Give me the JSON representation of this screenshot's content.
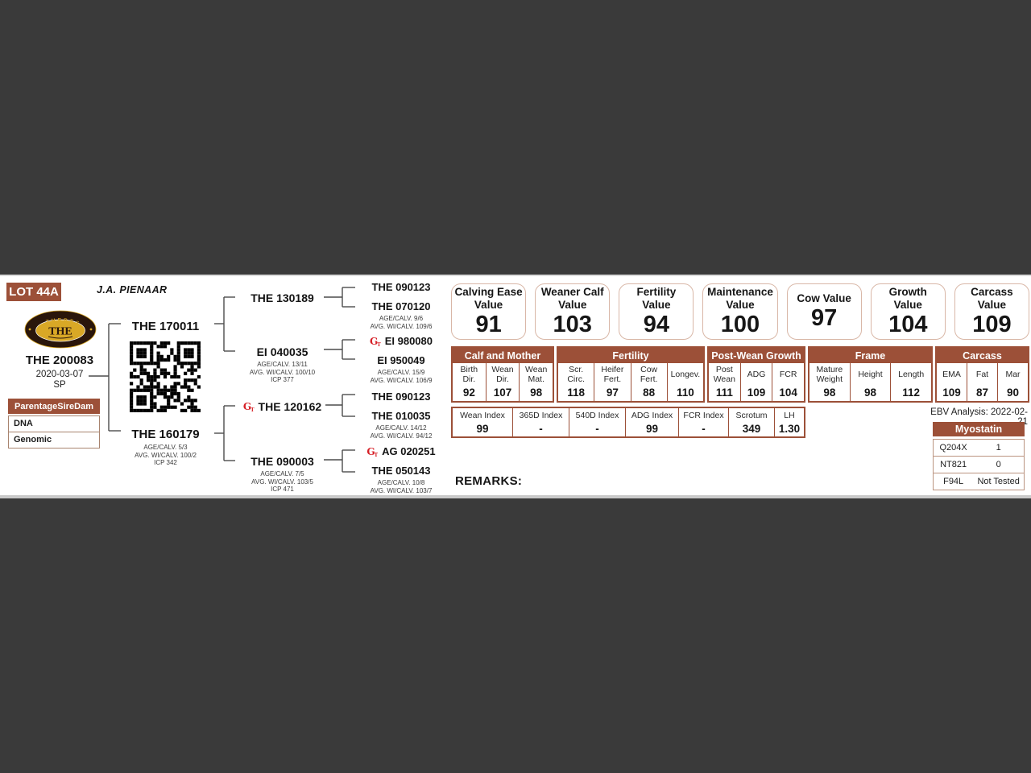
{
  "header": {
    "lot": "LOT 44A",
    "breeder": "J.A. PIENAAR"
  },
  "animal": {
    "id": "THE 200083",
    "birth_date": "2020-03-07",
    "status": "SP"
  },
  "parentage": {
    "title_words": [
      "Parentage",
      "Sire",
      "Dam"
    ],
    "rows": [
      "DNA",
      "Genomic"
    ]
  },
  "logo": {
    "top": "THERES",
    "center": "THE",
    "bottom": "BONSMARAS"
  },
  "icons": {
    "genomic_main": "G",
    "genomic_sub": "T"
  },
  "pedigree": {
    "sire": {
      "id": "THE 170011"
    },
    "dam": {
      "id": "THE 160179",
      "stats": [
        "AGE/CALV. 5/3",
        "AVG. WI/CALV. 100/2",
        "ICP 342"
      ]
    },
    "gen2": [
      {
        "id": "THE 130189"
      },
      {
        "id": "EI 040035",
        "stats": [
          "AGE/CALV. 13/11",
          "AVG. WI/CALV. 100/10",
          "ICP 377"
        ]
      },
      {
        "id": "THE 120162"
      },
      {
        "id": "THE 090003",
        "stats": [
          "AGE/CALV. 7/5",
          "AVG. WI/CALV. 103/5",
          "ICP 471"
        ]
      }
    ],
    "gen3": [
      {
        "id": "THE 090123"
      },
      {
        "id": "THE 070120",
        "stats": [
          "AGE/CALV. 9/6",
          "AVG. WI/CALV. 109/6"
        ]
      },
      {
        "id": "EI 980080"
      },
      {
        "id": "EI 950049",
        "stats": [
          "AGE/CALV. 15/9",
          "AVG. WI/CALV. 106/9"
        ]
      },
      {
        "id": "THE 090123"
      },
      {
        "id": "THE 010035",
        "stats": [
          "AGE/CALV. 14/12",
          "AVG. WI/CALV. 94/12"
        ]
      },
      {
        "id": "AG 020251"
      },
      {
        "id": "THE 050143",
        "stats": [
          "AGE/CALV. 10/8",
          "AVG. WI/CALV. 103/7"
        ]
      }
    ]
  },
  "values": [
    {
      "title": "Calving Ease",
      "subtitle": "Value",
      "value": "91"
    },
    {
      "title": "Weaner Calf",
      "subtitle": "Value",
      "value": "103"
    },
    {
      "title": "Fertility",
      "subtitle": "Value",
      "value": "94"
    },
    {
      "title": "Maintenance",
      "subtitle": "Value",
      "value": "100"
    },
    {
      "title": "Cow Value",
      "subtitle": "",
      "value": "97"
    },
    {
      "title": "Growth",
      "subtitle": "Value",
      "value": "104"
    },
    {
      "title": "Carcass",
      "subtitle": "Value",
      "value": "109"
    }
  ],
  "ebv_table": {
    "groups": [
      {
        "title": "Calf and Mother",
        "cols": [
          {
            "label": "Birth Dir.",
            "value": "92"
          },
          {
            "label": "Wean Dir.",
            "value": "107"
          },
          {
            "label": "Wean Mat.",
            "value": "98"
          }
        ]
      },
      {
        "title": "Fertility",
        "cols": [
          {
            "label": "Scr. Circ.",
            "value": "118"
          },
          {
            "label": "Heifer Fert.",
            "value": "97"
          },
          {
            "label": "Cow Fert.",
            "value": "88"
          },
          {
            "label": "Longev.",
            "value": "110"
          }
        ]
      },
      {
        "title": "Post-Wean Growth",
        "cols": [
          {
            "label": "Post Wean",
            "value": "111"
          },
          {
            "label": "ADG",
            "value": "109"
          },
          {
            "label": "FCR",
            "value": "104"
          }
        ]
      },
      {
        "title": "Frame",
        "cols": [
          {
            "label": "Mature Weight",
            "value": "98"
          },
          {
            "label": "Height",
            "value": "98"
          },
          {
            "label": "Length",
            "value": "112"
          }
        ]
      },
      {
        "title": "Carcass",
        "cols": [
          {
            "label": "EMA",
            "value": "109"
          },
          {
            "label": "Fat",
            "value": "87"
          },
          {
            "label": "Mar",
            "value": "90"
          }
        ]
      }
    ]
  },
  "index_row": [
    {
      "label": "Wean Index",
      "value": "99"
    },
    {
      "label": "365D Index",
      "value": "-"
    },
    {
      "label": "540D Index",
      "value": "-"
    },
    {
      "label": "ADG Index",
      "value": "99"
    },
    {
      "label": "FCR Index",
      "value": "-"
    },
    {
      "label": "Scrotum",
      "value": "349"
    },
    {
      "label": "LH",
      "value": "1.30"
    }
  ],
  "ebv_analysis": "EBV Analysis: 2022-02-21",
  "myostatin": {
    "title": "Myostatin",
    "rows": [
      {
        "gene": "Q204X",
        "result": "1"
      },
      {
        "gene": "NT821",
        "result": "0"
      },
      {
        "gene": "F94L",
        "result": "Not Tested"
      }
    ]
  },
  "remarks_label": "REMARKS:",
  "colors": {
    "accent_brown": "#9c5038",
    "box_border": "#d9b7a7",
    "logo_gold": "#d9a826",
    "icon_red": "#d61f26"
  }
}
